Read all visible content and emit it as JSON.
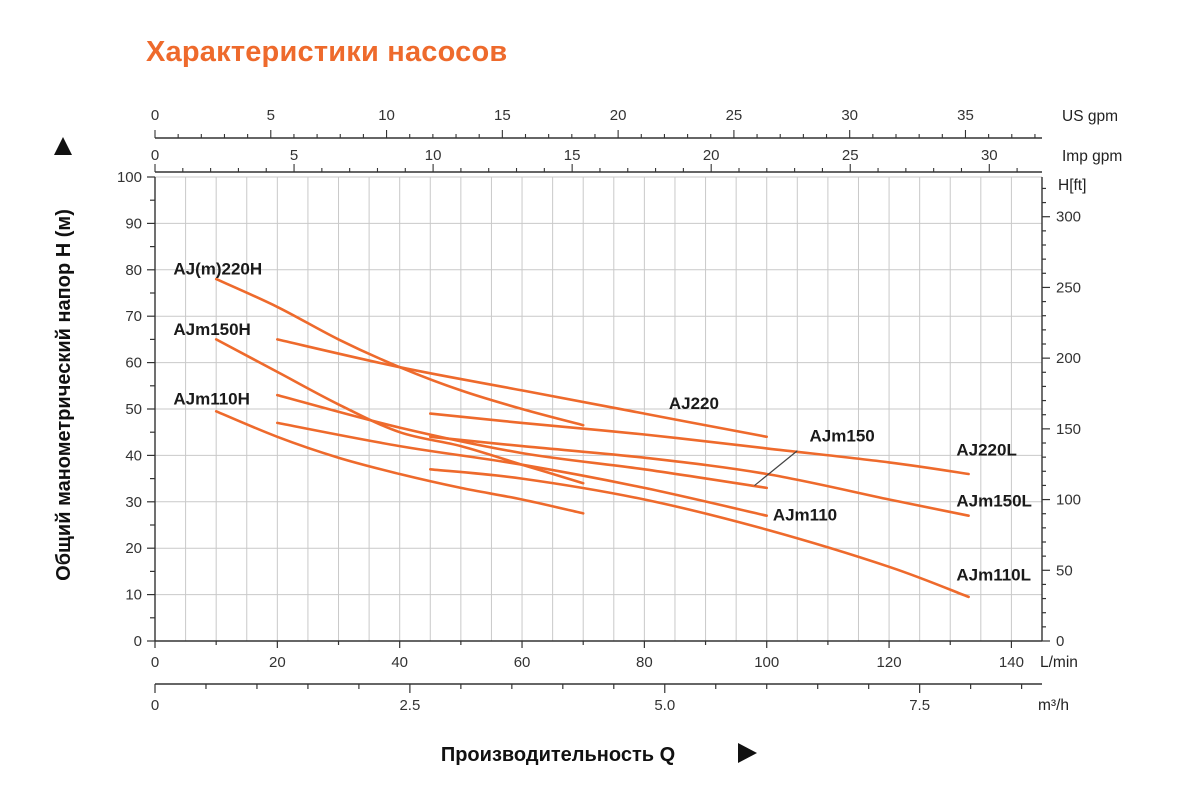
{
  "chart_data": {
    "type": "line",
    "title": "Характеристики насосов",
    "xlabel": "Производительность Q",
    "ylabel": "Общий манометрический напор H (м)",
    "grid": true,
    "axes": {
      "x_lmin": {
        "unit": "L/min",
        "range": [
          0,
          145
        ],
        "ticks": [
          0,
          20,
          40,
          60,
          80,
          100,
          120,
          140
        ]
      },
      "x_m3h": {
        "unit": "m³/h",
        "ticks": [
          0,
          2.5,
          5.0,
          7.5
        ],
        "tick_labels": [
          "0",
          "2.5",
          "5.0",
          "7.5"
        ]
      },
      "x_usgpm": {
        "unit": "US gpm",
        "ticks": [
          0,
          5,
          10,
          15,
          20,
          25,
          30,
          35
        ]
      },
      "x_impgpm": {
        "unit": "Imp gpm",
        "ticks": [
          0,
          5,
          10,
          15,
          20,
          25,
          30
        ]
      },
      "y_m": {
        "unit": "",
        "range": [
          0,
          100
        ],
        "ticks": [
          0,
          10,
          20,
          30,
          40,
          50,
          60,
          70,
          80,
          90,
          100
        ]
      },
      "y_ft": {
        "unit": "H[ft]",
        "ticks": [
          0,
          50,
          100,
          150,
          200,
          250,
          300
        ]
      }
    },
    "series": [
      {
        "name": "AJ(m)220H",
        "points": [
          [
            10,
            78
          ],
          [
            20,
            72
          ],
          [
            30,
            65
          ],
          [
            40,
            59
          ],
          [
            50,
            54
          ],
          [
            60,
            50
          ],
          [
            70,
            46.5
          ]
        ]
      },
      {
        "name": "AJm150H",
        "points": [
          [
            10,
            65
          ],
          [
            20,
            58
          ],
          [
            30,
            51
          ],
          [
            40,
            45
          ],
          [
            50,
            42
          ],
          [
            60,
            38
          ],
          [
            70,
            34
          ]
        ]
      },
      {
        "name": "AJm110H",
        "points": [
          [
            10,
            49.5
          ],
          [
            20,
            44
          ],
          [
            30,
            39.5
          ],
          [
            40,
            36
          ],
          [
            50,
            33
          ],
          [
            60,
            30.5
          ],
          [
            70,
            27.5
          ]
        ]
      },
      {
        "name": "AJ220",
        "points": [
          [
            20,
            65
          ],
          [
            40,
            59
          ],
          [
            60,
            54
          ],
          [
            80,
            49
          ],
          [
            100,
            44
          ]
        ]
      },
      {
        "name": "AJm150",
        "points": [
          [
            20,
            53
          ],
          [
            40,
            46
          ],
          [
            60,
            40.5
          ],
          [
            80,
            37
          ],
          [
            100,
            33
          ]
        ]
      },
      {
        "name": "AJm110",
        "points": [
          [
            20,
            47
          ],
          [
            40,
            42
          ],
          [
            60,
            38
          ],
          [
            80,
            33
          ],
          [
            100,
            27
          ]
        ]
      },
      {
        "name": "AJ220L",
        "points": [
          [
            45,
            49
          ],
          [
            60,
            47
          ],
          [
            80,
            44.5
          ],
          [
            100,
            41.5
          ],
          [
            120,
            38.5
          ],
          [
            133,
            36
          ]
        ]
      },
      {
        "name": "AJm150L",
        "points": [
          [
            45,
            44
          ],
          [
            60,
            42
          ],
          [
            80,
            39.5
          ],
          [
            100,
            36
          ],
          [
            120,
            30.5
          ],
          [
            133,
            27
          ]
        ]
      },
      {
        "name": "AJm110L",
        "points": [
          [
            45,
            37
          ],
          [
            60,
            35
          ],
          [
            80,
            30.5
          ],
          [
            100,
            24
          ],
          [
            120,
            16
          ],
          [
            133,
            9.5
          ]
        ]
      }
    ],
    "annotations": [
      {
        "text": "AJ(m)220H",
        "x": 3,
        "y": 79
      },
      {
        "text": "AJm150H",
        "x": 3,
        "y": 66
      },
      {
        "text": "AJm110H",
        "x": 3,
        "y": 51
      },
      {
        "text": "AJ220",
        "x": 84,
        "y": 50
      },
      {
        "text": "AJm150",
        "x": 107,
        "y": 43
      },
      {
        "text": "AJ220L",
        "x": 131,
        "y": 40
      },
      {
        "text": "AJm110",
        "x": 101,
        "y": 26
      },
      {
        "text": "AJm150L",
        "x": 131,
        "y": 29
      },
      {
        "text": "AJm110L",
        "x": 131,
        "y": 13
      }
    ],
    "leader_line": {
      "label": "AJm150",
      "from": [
        105,
        41
      ],
      "to": [
        98,
        33.5
      ]
    },
    "line_color": "#ee6a2c"
  }
}
